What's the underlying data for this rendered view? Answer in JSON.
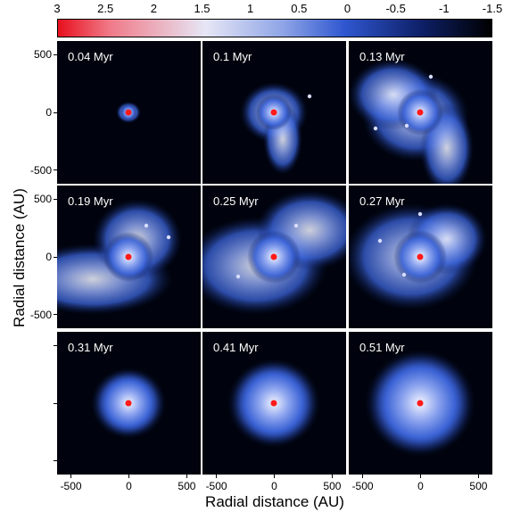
{
  "colorbar": {
    "ticks": [
      "3",
      "2.5",
      "2",
      "1.5",
      "1",
      "0.5",
      "0",
      "-0.5",
      "-1",
      "-1.5"
    ],
    "colors": {
      "high": "#e8101e",
      "mid": "#e6e6f5",
      "midlow": "#2f57d0",
      "low": "#000000"
    }
  },
  "panels": [
    {
      "time": "0.04 Myr"
    },
    {
      "time": "0.1 Myr"
    },
    {
      "time": "0.13 Myr"
    },
    {
      "time": "0.19 Myr"
    },
    {
      "time": "0.25 Myr"
    },
    {
      "time": "0.27 Myr"
    },
    {
      "time": "0.31 Myr"
    },
    {
      "time": "0.41 Myr"
    },
    {
      "time": "0.51 Myr"
    }
  ],
  "axes": {
    "xlabel": "Radial distance (AU)",
    "ylabel": "Radial distance (AU)",
    "tick_labels": [
      "-500",
      "0",
      "500"
    ],
    "range": [
      -620,
      620
    ]
  },
  "colors": {
    "panel_bg": "#00030d",
    "star": "#ff1a1a",
    "gas": "#3a63d8"
  }
}
